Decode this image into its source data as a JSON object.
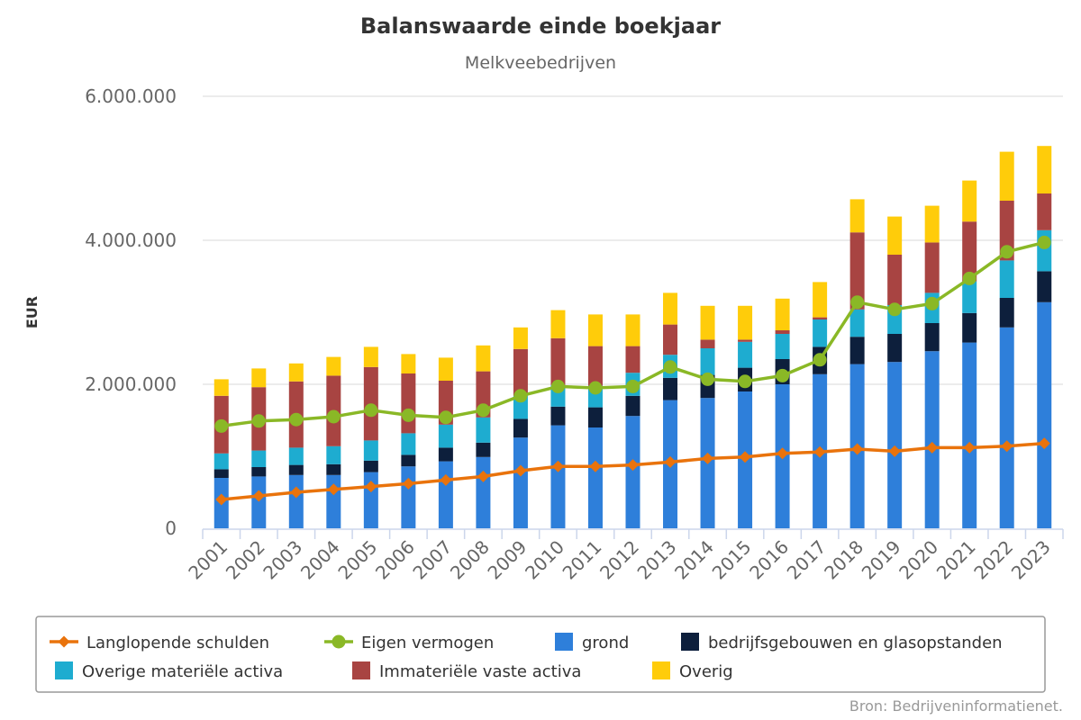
{
  "chart_data": {
    "type": "bar",
    "stacked": true,
    "title": "Balanswaarde einde boekjaar",
    "subtitle": "Melkveebedrijven",
    "xlabel": "",
    "ylabel": "EUR",
    "ylim": [
      0,
      6000000
    ],
    "yticks": [
      0,
      2000000,
      4000000,
      6000000
    ],
    "ytick_labels": [
      "0",
      "2.000.000",
      "4.000.000",
      "6.000.000"
    ],
    "grid": true,
    "legend_position": "bottom",
    "credits": "Bron: Bedrijveninformatienet.",
    "categories": [
      "2001",
      "2002",
      "2003",
      "2004",
      "2005",
      "2006",
      "2007",
      "2008",
      "2009",
      "2010",
      "2011",
      "2012",
      "2013",
      "2014",
      "2015",
      "2016",
      "2017",
      "2018",
      "2019",
      "2020",
      "2021",
      "2022",
      "2023"
    ],
    "series": [
      {
        "name": "grond",
        "kind": "bar",
        "color": "#2e7fda",
        "values": [
          700000,
          720000,
          740000,
          740000,
          780000,
          860000,
          930000,
          990000,
          1260000,
          1430000,
          1400000,
          1560000,
          1780000,
          1810000,
          1900000,
          2000000,
          2140000,
          2280000,
          2310000,
          2460000,
          2580000,
          2790000,
          3140000
        ]
      },
      {
        "name": "bedrijfsgebouwen en glasopstanden",
        "kind": "bar",
        "color": "#0d1f3c",
        "values": [
          120000,
          130000,
          140000,
          150000,
          160000,
          160000,
          190000,
          200000,
          260000,
          260000,
          280000,
          280000,
          310000,
          320000,
          330000,
          350000,
          380000,
          380000,
          390000,
          390000,
          410000,
          410000,
          430000
        ]
      },
      {
        "name": "Overige materiële activa",
        "kind": "bar",
        "color": "#1eacd0",
        "values": [
          220000,
          230000,
          240000,
          250000,
          280000,
          300000,
          320000,
          350000,
          320000,
          300000,
          300000,
          320000,
          320000,
          370000,
          360000,
          350000,
          380000,
          380000,
          400000,
          420000,
          440000,
          520000,
          570000
        ]
      },
      {
        "name": "Immateriële vaste activa",
        "kind": "bar",
        "color": "#a84442",
        "values": [
          800000,
          880000,
          920000,
          980000,
          1020000,
          830000,
          610000,
          640000,
          650000,
          650000,
          550000,
          370000,
          420000,
          120000,
          30000,
          50000,
          30000,
          1070000,
          700000,
          700000,
          830000,
          830000,
          510000
        ]
      },
      {
        "name": "Overig",
        "kind": "bar",
        "color": "#ffcc0a",
        "values": [
          230000,
          260000,
          250000,
          260000,
          280000,
          270000,
          320000,
          360000,
          300000,
          390000,
          440000,
          440000,
          440000,
          470000,
          470000,
          440000,
          490000,
          460000,
          530000,
          510000,
          570000,
          680000,
          660000
        ]
      },
      {
        "name": "Langlopende schulden",
        "kind": "line",
        "color": "#e9730c",
        "marker": "diamond",
        "values": [
          400000,
          450000,
          500000,
          540000,
          580000,
          620000,
          670000,
          720000,
          800000,
          860000,
          860000,
          880000,
          920000,
          970000,
          990000,
          1040000,
          1060000,
          1100000,
          1070000,
          1120000,
          1120000,
          1140000,
          1180000
        ]
      },
      {
        "name": "Eigen vermogen",
        "kind": "line",
        "color": "#8ab826",
        "marker": "circle",
        "values": [
          1420000,
          1490000,
          1510000,
          1550000,
          1640000,
          1570000,
          1540000,
          1640000,
          1840000,
          1970000,
          1950000,
          1970000,
          2240000,
          2070000,
          2040000,
          2120000,
          2340000,
          3140000,
          3040000,
          3120000,
          3470000,
          3840000,
          3970000
        ]
      }
    ],
    "legend_order": [
      "Langlopende schulden",
      "Eigen vermogen",
      "grond",
      "bedrijfsgebouwen en glasopstanden",
      "Overige materiële activa",
      "Immateriële vaste activa",
      "Overig"
    ]
  }
}
